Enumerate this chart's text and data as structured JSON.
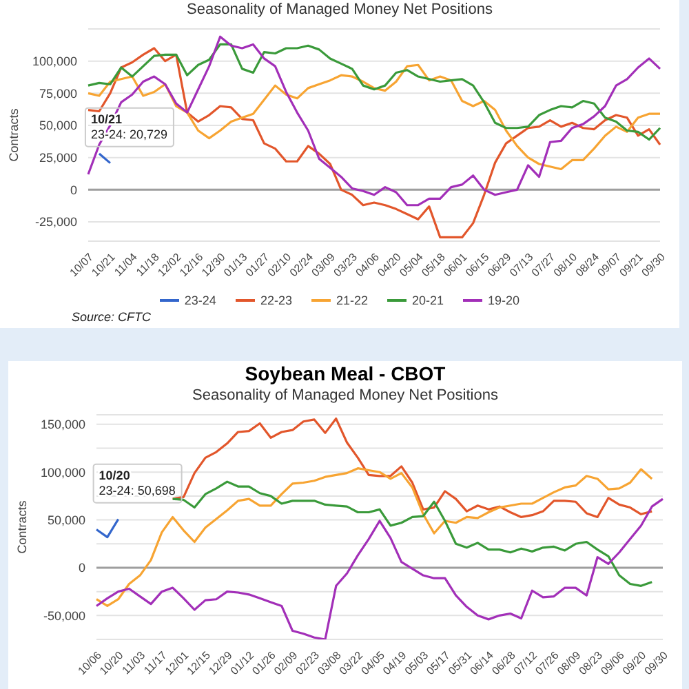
{
  "chart_data": [
    {
      "type": "line",
      "subtitle": "Seasonality of Managed Money Net Positions",
      "ylabel": "Contracts",
      "categories": [
        "10/07",
        null,
        "10/21",
        null,
        "11/04",
        null,
        "11/18",
        null,
        "12/02",
        null,
        "12/16",
        null,
        "12/30",
        null,
        "01/13",
        null,
        "01/27",
        null,
        "02/10",
        null,
        "02/24",
        null,
        "03/09",
        null,
        "03/23",
        null,
        "04/06",
        null,
        "04/20",
        null,
        "05/04",
        null,
        "05/18",
        null,
        "06/01",
        null,
        "06/15",
        null,
        "06/29",
        null,
        "07/13",
        null,
        "07/27",
        null,
        "08/10",
        null,
        "08/24",
        null,
        "09/07",
        null,
        "09/21",
        null,
        "09/30"
      ],
      "series": [
        {
          "name": "23-24",
          "color": "#3366cc",
          "values": [
            null,
            28000,
            20729,
            null,
            null,
            null,
            null,
            null,
            null,
            null,
            null,
            null,
            null,
            null,
            null,
            null,
            null,
            null,
            null,
            null,
            null,
            null,
            null,
            null,
            null,
            null,
            null,
            null,
            null,
            null,
            null,
            null,
            null,
            null,
            null,
            null,
            null,
            null,
            null,
            null,
            null,
            null,
            null,
            null,
            null,
            null,
            null,
            null,
            null,
            null,
            null,
            null,
            null
          ]
        },
        {
          "name": "22-23",
          "color": "#e2562b",
          "values": [
            62000,
            61000,
            75000,
            95000,
            99000,
            105000,
            110000,
            100000,
            105000,
            60000,
            53000,
            58000,
            65000,
            64000,
            55000,
            54000,
            36000,
            32000,
            22000,
            22000,
            34000,
            28000,
            20000,
            0,
            -4000,
            -12000,
            -10000,
            -12000,
            -15000,
            -19000,
            -23000,
            -13000,
            -37000,
            -37000,
            -37000,
            -26000,
            -4000,
            21000,
            36000,
            42000,
            48000,
            49000,
            54000,
            49000,
            52000,
            48000,
            47000,
            54000,
            58000,
            56000,
            42000,
            47000,
            35000
          ]
        },
        {
          "name": "21-22",
          "color": "#f7a432",
          "values": [
            75000,
            73000,
            84000,
            86000,
            88000,
            73000,
            76000,
            82000,
            65000,
            60000,
            46000,
            40000,
            46000,
            53000,
            56000,
            59000,
            70000,
            81000,
            74000,
            71000,
            79000,
            82000,
            85000,
            89000,
            88000,
            84000,
            79000,
            77000,
            84000,
            96000,
            97000,
            85000,
            88000,
            85000,
            69000,
            65000,
            69000,
            62000,
            46000,
            34000,
            25000,
            20000,
            18000,
            16000,
            23000,
            23000,
            32000,
            42000,
            49000,
            45000,
            56000,
            59000,
            59000
          ]
        },
        {
          "name": "20-21",
          "color": "#3a9a3a",
          "values": [
            81000,
            83000,
            82000,
            95000,
            88000,
            96000,
            104000,
            105000,
            105000,
            89000,
            97000,
            101000,
            113000,
            113000,
            94000,
            91000,
            107000,
            106000,
            110000,
            110000,
            112000,
            109000,
            102000,
            98000,
            94000,
            81000,
            78000,
            81000,
            91000,
            93000,
            88000,
            86000,
            84000,
            85000,
            86000,
            81000,
            68000,
            52000,
            48000,
            48000,
            49000,
            58000,
            62000,
            65000,
            64000,
            69000,
            67000,
            56000,
            53000,
            46000,
            45000,
            39000,
            48000
          ]
        },
        {
          "name": "19-20",
          "color": "#a22fb8",
          "values": [
            12000,
            35000,
            50000,
            68000,
            74000,
            84000,
            88000,
            82000,
            67000,
            60000,
            78000,
            96000,
            119000,
            112000,
            110000,
            113000,
            102000,
            96000,
            76000,
            60000,
            46000,
            24000,
            17000,
            10000,
            1000,
            -1000,
            -4000,
            2000,
            -2000,
            -12000,
            -12000,
            -7000,
            -7000,
            2000,
            4000,
            11000,
            0,
            -4000,
            -2000,
            0,
            19000,
            10000,
            37000,
            38000,
            48000,
            51000,
            57000,
            65000,
            81000,
            86000,
            95000,
            102000,
            94000
          ]
        }
      ],
      "ylim": [
        -40000,
        125000
      ],
      "yticks": [
        {
          "value": -25000,
          "label": "-25,000"
        },
        0,
        {
          "value": 25000,
          "label": "25,000"
        },
        {
          "value": 50000,
          "label": "50,000"
        },
        {
          "value": 75000,
          "label": "75,000"
        },
        {
          "value": 100000,
          "label": "100,000"
        }
      ],
      "ref_lines": [
        {
          "axis": "y",
          "value": 0,
          "color": "#9e9e9e"
        }
      ],
      "grid": "y",
      "legend": "bottom",
      "marker": "none",
      "line_style": "solid",
      "annotations": [
        {
          "text": "10/21",
          "x": "10/21",
          "y": 20729
        },
        {
          "text": "23-24: 20,729",
          "x": "10/21",
          "y": 20729
        },
        "Source: CFTC"
      ]
    },
    {
      "type": "line",
      "title": "Soybean Meal - CBOT",
      "subtitle": "Seasonality of Managed Money Net Positions",
      "ylabel": "Contracts",
      "categories": [
        "10/06",
        null,
        "10/20",
        null,
        "11/03",
        null,
        "11/17",
        null,
        "12/01",
        null,
        "12/15",
        null,
        "12/29",
        null,
        "01/12",
        null,
        "01/26",
        null,
        "02/09",
        null,
        "02/23",
        null,
        "03/08",
        null,
        "03/22",
        null,
        "04/05",
        null,
        "04/19",
        null,
        "05/03",
        null,
        "05/17",
        null,
        "05/31",
        null,
        "06/14",
        null,
        "06/28",
        null,
        "07/12",
        null,
        "07/26",
        null,
        "08/09",
        null,
        "08/23",
        null,
        "09/06",
        null,
        "09/20",
        null,
        "09/30"
      ],
      "series": [
        {
          "color": "#3366cc",
          "values": [
            40000,
            32000,
            50698,
            null,
            null,
            null,
            null,
            null,
            null,
            null,
            null,
            null,
            null,
            null,
            null,
            null,
            null,
            null,
            null,
            null,
            null,
            null,
            null,
            null,
            null,
            null,
            null,
            null,
            null,
            null,
            null,
            null,
            null,
            null,
            null,
            null,
            null,
            null,
            null,
            null,
            null,
            null,
            null,
            null,
            null,
            null,
            null,
            null,
            null,
            null,
            null,
            null,
            null
          ]
        },
        {
          "color": "#e2562b",
          "values": [
            null,
            null,
            null,
            null,
            null,
            null,
            null,
            72000,
            74000,
            99000,
            115000,
            121000,
            130000,
            142000,
            143000,
            151000,
            136000,
            142000,
            144000,
            153000,
            155000,
            141000,
            156000,
            131000,
            115000,
            97000,
            96000,
            96000,
            106000,
            89000,
            61000,
            63000,
            80000,
            72000,
            59000,
            65000,
            61000,
            64000,
            58000,
            53000,
            55000,
            59000,
            70000,
            70000,
            69000,
            57000,
            53000,
            73000,
            66000,
            63000,
            56000,
            59000,
            null
          ]
        },
        {
          "color": "#f7a432",
          "values": [
            -33000,
            -40000,
            -33000,
            -17000,
            -8000,
            8000,
            37000,
            53000,
            39000,
            27000,
            42000,
            51000,
            60000,
            70000,
            72000,
            65000,
            65000,
            77000,
            88000,
            89000,
            91000,
            95000,
            97000,
            99000,
            104000,
            102000,
            100000,
            93000,
            99000,
            84000,
            56000,
            36000,
            49000,
            47000,
            53000,
            52000,
            58000,
            63000,
            65000,
            67000,
            67000,
            73000,
            79000,
            84000,
            86000,
            96000,
            93000,
            82000,
            83000,
            89000,
            103000,
            93000,
            null
          ]
        },
        {
          "color": "#3a9a3a",
          "values": [
            null,
            null,
            null,
            null,
            null,
            null,
            null,
            72000,
            71000,
            63000,
            77000,
            83000,
            90000,
            85000,
            85000,
            78000,
            75000,
            67000,
            70000,
            70000,
            70000,
            66000,
            65000,
            64000,
            58000,
            58000,
            61000,
            44000,
            47000,
            53000,
            54000,
            69000,
            49000,
            25000,
            21000,
            26000,
            19000,
            19000,
            16000,
            20000,
            17000,
            21000,
            22000,
            18000,
            25000,
            27000,
            19000,
            12000,
            -8000,
            -17000,
            -19000,
            -15000,
            null
          ]
        },
        {
          "color": "#a22fb8",
          "values": [
            -40000,
            -32000,
            -25000,
            -22000,
            -30000,
            -38000,
            -25000,
            -21000,
            -32000,
            -44000,
            -34000,
            -33000,
            -25000,
            -26000,
            -28000,
            -32000,
            -36000,
            -40000,
            -66000,
            -69000,
            -73000,
            -75000,
            -19000,
            -6000,
            13000,
            30000,
            49000,
            31000,
            6000,
            -1000,
            -8000,
            -11000,
            -11000,
            -29000,
            -41000,
            -50000,
            -54000,
            -50000,
            -48000,
            -53000,
            -24000,
            -31000,
            -30000,
            -21000,
            -21000,
            -29000,
            11000,
            4000,
            16000,
            30000,
            44000,
            64000,
            72000
          ]
        }
      ],
      "ylim": [
        -75000,
        160000
      ],
      "yticks": [
        {
          "value": -75000,
          "label": null
        },
        {
          "value": -50000,
          "label": "-50,000"
        },
        {
          "value": -25000,
          "label": null
        },
        0,
        {
          "value": 25000,
          "label": null
        },
        {
          "value": 50000,
          "label": "50,000"
        },
        {
          "value": 75000,
          "label": null
        },
        {
          "value": 100000,
          "label": "100,000"
        },
        {
          "value": 125000,
          "label": null
        },
        {
          "value": 150000,
          "label": "150,000"
        }
      ],
      "ref_lines": [
        {
          "axis": "y",
          "value": 0,
          "color": "#9e9e9e"
        }
      ],
      "grid": "y",
      "marker": "none",
      "line_style": "solid",
      "annotations": [
        {
          "text": "10/20",
          "x": "10/20",
          "y": 50698
        },
        {
          "text": "23-24: 50,698",
          "x": "10/20",
          "y": 50698
        }
      ]
    }
  ]
}
